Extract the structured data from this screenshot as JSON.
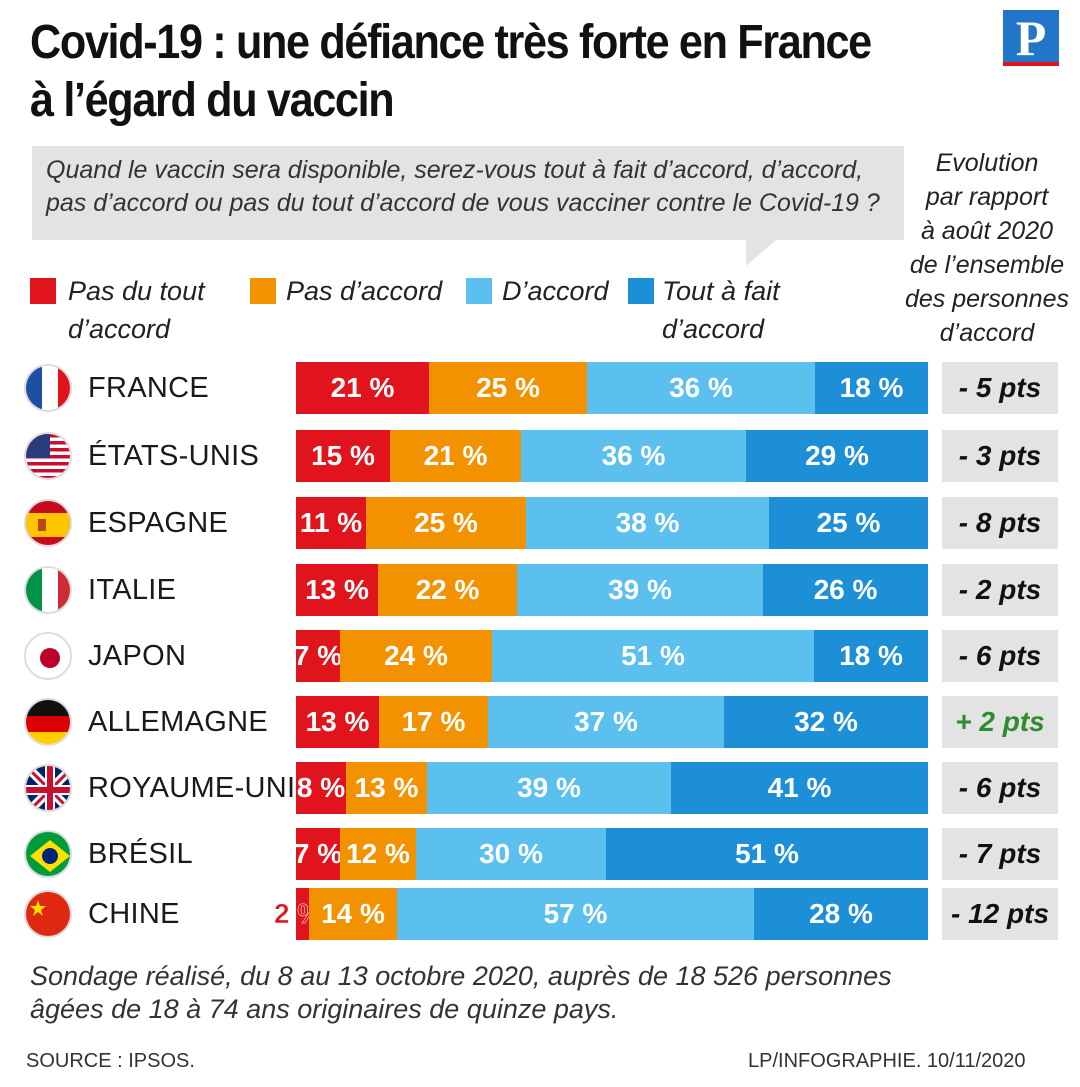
{
  "title_line1": "Covid-19 : une défiance très forte en France",
  "title_line2": "à l’égard du vaccin",
  "logo_letter": "P",
  "question_line1": "Quand le vaccin sera disponible, serez-vous tout à fait d’accord, d’accord,",
  "question_line2": "pas d’accord ou pas du tout d’accord de vous vacciner contre le Covid-19 ?",
  "evolution_header": [
    "Evolution",
    "par rapport",
    "à août 2020",
    "de l’ensemble",
    "des personnes",
    "d’accord"
  ],
  "colors": {
    "pas_du_tout": "#e1141d",
    "pas_accord": "#f39200",
    "accord": "#5bc0ee",
    "tout_a_fait": "#1d8fd6",
    "positive": "#2e8b2e",
    "negative": "#111111"
  },
  "legend": [
    {
      "line1": "Pas du tout",
      "line2": "d’accord"
    },
    {
      "line1": "Pas d’accord",
      "line2": ""
    },
    {
      "line1": "D’accord",
      "line2": ""
    },
    {
      "line1": "Tout à fait",
      "line2": "d’accord"
    }
  ],
  "chart_data": {
    "type": "bar",
    "orientation": "horizontal-stacked-100",
    "title": "Covid-19 : une défiance très forte en France à l’égard du vaccin",
    "categories": [
      "FRANCE",
      "ÉTATS-UNIS",
      "ESPAGNE",
      "ITALIE",
      "JAPON",
      "ALLEMAGNE",
      "ROYAUME-UNI",
      "BRÉSIL",
      "CHINE"
    ],
    "series": [
      {
        "name": "Pas du tout d’accord",
        "values": [
          21,
          15,
          11,
          13,
          7,
          13,
          8,
          7,
          2
        ]
      },
      {
        "name": "Pas d’accord",
        "values": [
          25,
          21,
          25,
          22,
          24,
          17,
          13,
          12,
          14
        ]
      },
      {
        "name": "D’accord",
        "values": [
          36,
          36,
          38,
          39,
          51,
          37,
          39,
          30,
          57
        ]
      },
      {
        "name": "Tout à fait d’accord",
        "values": [
          18,
          29,
          25,
          26,
          18,
          32,
          41,
          51,
          28
        ]
      }
    ],
    "value_labels": [
      [
        "21 %",
        "25 %",
        "36 %",
        "18 %"
      ],
      [
        "15 %",
        "21 %",
        "36 %",
        "29 %"
      ],
      [
        "11 %",
        "25 %",
        "38 %",
        "25 %"
      ],
      [
        "13 %",
        "22 %",
        "39 %",
        "26 %"
      ],
      [
        "7 %",
        "24 %",
        "51 %",
        "18 %"
      ],
      [
        "13 %",
        "17 %",
        "37 %",
        "32 %"
      ],
      [
        "8 %",
        "13 %",
        "39 %",
        "41 %"
      ],
      [
        "7 %",
        "12 %",
        "30 %",
        "51 %"
      ],
      [
        "2 %",
        "14 %",
        "57 %",
        "28 %"
      ]
    ],
    "evolution": [
      "- 5 pts",
      "- 3 pts",
      "- 8 pts",
      "- 2 pts",
      "- 6 pts",
      "+ 2 pts",
      "- 6 pts",
      "- 7 pts",
      "- 12 pts"
    ],
    "flags": [
      "france-flag-icon",
      "usa-flag-icon",
      "spain-flag-icon",
      "italy-flag-icon",
      "japan-flag-icon",
      "germany-flag-icon",
      "uk-flag-icon",
      "brazil-flag-icon",
      "china-flag-icon"
    ]
  },
  "footnote_line1": "Sondage réalisé, du 8 au 13 octobre 2020, auprès de 18 526 personnes",
  "footnote_line2": "âgées de 18 à 74 ans originaires de quinze pays.",
  "source": "SOURCE : IPSOS.",
  "credit": "LP/INFOGRAPHIE.  10/11/2020"
}
